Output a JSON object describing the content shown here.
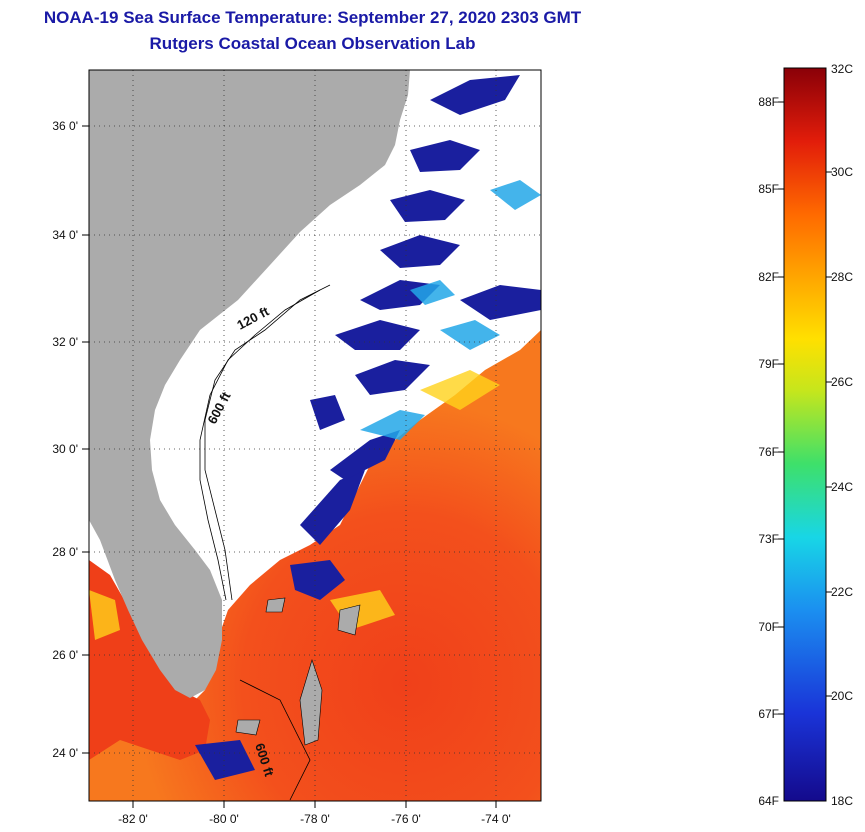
{
  "header": {
    "title": "NOAA-19 Sea Surface Temperature:  September 27, 2020 2303 GMT",
    "subtitle": "Rutgers Coastal Ocean Observation Lab"
  },
  "map": {
    "lat_labels": [
      "36 0'",
      "34 0'",
      "32 0'",
      "30 0'",
      "28 0'",
      "26 0'",
      "24 0'"
    ],
    "lon_labels": [
      "-82 0'",
      "-80 0'",
      "-78 0'",
      "-76 0'",
      "-74 0'"
    ],
    "contour_labels": [
      "120 ft",
      "600 ft",
      "600 ft"
    ],
    "colors": {
      "land": "#ababab",
      "cloud": "#ffffff",
      "cold": "#0a1f9c",
      "warm": "#ee3b14"
    }
  },
  "colorbar": {
    "fahrenheit_labels": [
      "88F",
      "85F",
      "82F",
      "79F",
      "76F",
      "73F",
      "70F",
      "67F",
      "64F"
    ],
    "celsius_labels": [
      "32C",
      "30C",
      "28C",
      "26C",
      "24C",
      "22C",
      "20C",
      "18C"
    ],
    "range_c": [
      18,
      32
    ],
    "range_f": [
      64,
      88
    ]
  }
}
